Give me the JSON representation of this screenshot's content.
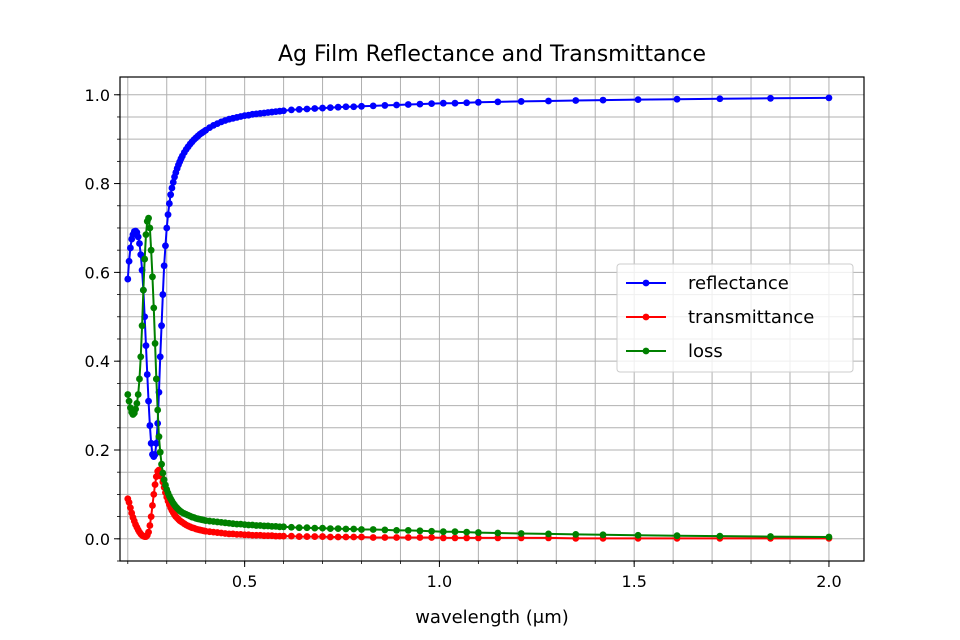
{
  "chart_data": {
    "type": "line",
    "title": "Ag Film Reflectance and Transmittance",
    "xlabel": "wavelength (μm)",
    "ylabel": "",
    "xlim": [
      0.18,
      2.09
    ],
    "ylim": [
      -0.05,
      1.04
    ],
    "xticks": [
      0.5,
      1.0,
      1.5,
      2.0
    ],
    "xtick_labels": [
      "0.5",
      "1.0",
      "1.5",
      "2.0"
    ],
    "yticks": [
      0.0,
      0.2,
      0.4,
      0.6,
      0.8,
      1.0
    ],
    "ytick_labels": [
      "0.0",
      "0.2",
      "0.4",
      "0.6",
      "0.8",
      "1.0"
    ],
    "grid": true,
    "minor_grid": true,
    "legend_position": "center-right",
    "series": [
      {
        "name": "reflectance",
        "color": "#0000ff",
        "x": [
          0.2,
          0.2033,
          0.2067,
          0.21,
          0.2133,
          0.2167,
          0.22,
          0.2233,
          0.2267,
          0.23,
          0.2333,
          0.2367,
          0.24,
          0.2433,
          0.2467,
          0.25,
          0.2533,
          0.2567,
          0.26,
          0.2633,
          0.2667,
          0.27,
          0.2733,
          0.2767,
          0.28,
          0.2833,
          0.2867,
          0.29,
          0.2933,
          0.2967,
          0.3,
          0.3033,
          0.3067,
          0.31,
          0.3133,
          0.3167,
          0.32,
          0.3233,
          0.3267,
          0.33,
          0.3333,
          0.3367,
          0.34,
          0.345,
          0.35,
          0.355,
          0.36,
          0.365,
          0.37,
          0.375,
          0.38,
          0.385,
          0.39,
          0.395,
          0.4,
          0.41,
          0.42,
          0.43,
          0.44,
          0.45,
          0.46,
          0.47,
          0.48,
          0.49,
          0.5,
          0.51,
          0.52,
          0.53,
          0.54,
          0.55,
          0.56,
          0.57,
          0.58,
          0.59,
          0.6,
          0.62,
          0.64,
          0.66,
          0.68,
          0.7,
          0.72,
          0.74,
          0.76,
          0.78,
          0.8,
          0.83,
          0.86,
          0.89,
          0.92,
          0.95,
          0.98,
          1.01,
          1.04,
          1.07,
          1.1,
          1.15,
          1.21,
          1.28,
          1.35,
          1.42,
          1.51,
          1.61,
          1.72,
          1.85,
          2.0
        ],
        "y": [
          0.585,
          0.625,
          0.655,
          0.675,
          0.685,
          0.692,
          0.693,
          0.69,
          0.68,
          0.665,
          0.64,
          0.605,
          0.56,
          0.5,
          0.435,
          0.37,
          0.31,
          0.255,
          0.215,
          0.19,
          0.185,
          0.19,
          0.215,
          0.26,
          0.33,
          0.41,
          0.48,
          0.55,
          0.615,
          0.66,
          0.7,
          0.73,
          0.755,
          0.775,
          0.79,
          0.803,
          0.815,
          0.825,
          0.834,
          0.842,
          0.849,
          0.856,
          0.862,
          0.87,
          0.877,
          0.883,
          0.889,
          0.894,
          0.899,
          0.903,
          0.907,
          0.911,
          0.914,
          0.917,
          0.92,
          0.926,
          0.931,
          0.935,
          0.939,
          0.942,
          0.945,
          0.947,
          0.949,
          0.951,
          0.953,
          0.954,
          0.956,
          0.957,
          0.958,
          0.959,
          0.96,
          0.961,
          0.962,
          0.963,
          0.964,
          0.966,
          0.967,
          0.968,
          0.969,
          0.97,
          0.971,
          0.972,
          0.973,
          0.973,
          0.974,
          0.975,
          0.976,
          0.977,
          0.978,
          0.979,
          0.98,
          0.981,
          0.981,
          0.982,
          0.983,
          0.984,
          0.985,
          0.986,
          0.987,
          0.988,
          0.989,
          0.99,
          0.991,
          0.992,
          0.993
        ]
      },
      {
        "name": "transmittance",
        "color": "#ff0000",
        "x": [
          0.2,
          0.2033,
          0.2067,
          0.21,
          0.2133,
          0.2167,
          0.22,
          0.2233,
          0.2267,
          0.23,
          0.2333,
          0.2367,
          0.24,
          0.2433,
          0.2467,
          0.25,
          0.2533,
          0.2567,
          0.26,
          0.2633,
          0.2667,
          0.27,
          0.2733,
          0.2767,
          0.28,
          0.2833,
          0.2867,
          0.29,
          0.2933,
          0.2967,
          0.3,
          0.3033,
          0.3067,
          0.31,
          0.3133,
          0.3167,
          0.32,
          0.3233,
          0.3267,
          0.33,
          0.3333,
          0.3367,
          0.34,
          0.345,
          0.35,
          0.355,
          0.36,
          0.365,
          0.37,
          0.375,
          0.38,
          0.385,
          0.39,
          0.395,
          0.4,
          0.41,
          0.42,
          0.43,
          0.44,
          0.45,
          0.46,
          0.47,
          0.48,
          0.49,
          0.5,
          0.51,
          0.52,
          0.53,
          0.54,
          0.55,
          0.56,
          0.57,
          0.58,
          0.59,
          0.6,
          0.62,
          0.64,
          0.66,
          0.68,
          0.7,
          0.72,
          0.74,
          0.76,
          0.78,
          0.8,
          0.83,
          0.86,
          0.89,
          0.92,
          0.95,
          0.98,
          1.01,
          1.04,
          1.07,
          1.1,
          1.15,
          1.21,
          1.28,
          1.35,
          1.42,
          1.51,
          1.61,
          1.72,
          1.85,
          2.0
        ],
        "y": [
          0.09,
          0.082,
          0.07,
          0.058,
          0.048,
          0.04,
          0.032,
          0.026,
          0.02,
          0.015,
          0.011,
          0.008,
          0.006,
          0.005,
          0.005,
          0.008,
          0.015,
          0.03,
          0.05,
          0.075,
          0.1,
          0.122,
          0.14,
          0.152,
          0.155,
          0.15,
          0.14,
          0.128,
          0.116,
          0.104,
          0.094,
          0.085,
          0.077,
          0.07,
          0.064,
          0.059,
          0.054,
          0.05,
          0.047,
          0.044,
          0.041,
          0.039,
          0.037,
          0.034,
          0.031,
          0.029,
          0.027,
          0.025,
          0.024,
          0.022,
          0.021,
          0.02,
          0.019,
          0.018,
          0.017,
          0.016,
          0.015,
          0.014,
          0.013,
          0.012,
          0.011,
          0.011,
          0.01,
          0.01,
          0.009,
          0.009,
          0.008,
          0.008,
          0.008,
          0.007,
          0.007,
          0.007,
          0.006,
          0.006,
          0.006,
          0.006,
          0.005,
          0.005,
          0.005,
          0.005,
          0.004,
          0.004,
          0.004,
          0.004,
          0.004,
          0.003,
          0.003,
          0.003,
          0.003,
          0.003,
          0.003,
          0.002,
          0.002,
          0.002,
          0.002,
          0.002,
          0.002,
          0.002,
          0.001,
          0.001,
          0.001,
          0.001,
          0.001,
          0.001,
          0.001
        ]
      },
      {
        "name": "loss",
        "color": "#008000",
        "x": [
          0.2,
          0.2033,
          0.2067,
          0.21,
          0.2133,
          0.2167,
          0.22,
          0.2233,
          0.2267,
          0.23,
          0.2333,
          0.2367,
          0.24,
          0.2433,
          0.2467,
          0.25,
          0.2533,
          0.2567,
          0.26,
          0.2633,
          0.2667,
          0.27,
          0.2733,
          0.2767,
          0.28,
          0.2833,
          0.2867,
          0.29,
          0.2933,
          0.2967,
          0.3,
          0.3033,
          0.3067,
          0.31,
          0.3133,
          0.3167,
          0.32,
          0.3233,
          0.3267,
          0.33,
          0.3333,
          0.3367,
          0.34,
          0.345,
          0.35,
          0.355,
          0.36,
          0.365,
          0.37,
          0.375,
          0.38,
          0.385,
          0.39,
          0.395,
          0.4,
          0.41,
          0.42,
          0.43,
          0.44,
          0.45,
          0.46,
          0.47,
          0.48,
          0.49,
          0.5,
          0.51,
          0.52,
          0.53,
          0.54,
          0.55,
          0.56,
          0.57,
          0.58,
          0.59,
          0.6,
          0.62,
          0.64,
          0.66,
          0.68,
          0.7,
          0.72,
          0.74,
          0.76,
          0.78,
          0.8,
          0.83,
          0.86,
          0.89,
          0.92,
          0.95,
          0.98,
          1.01,
          1.04,
          1.07,
          1.1,
          1.15,
          1.21,
          1.28,
          1.35,
          1.42,
          1.51,
          1.61,
          1.72,
          1.85,
          2.0
        ],
        "y": [
          0.325,
          0.31,
          0.295,
          0.285,
          0.28,
          0.283,
          0.292,
          0.305,
          0.325,
          0.36,
          0.41,
          0.48,
          0.56,
          0.63,
          0.685,
          0.715,
          0.722,
          0.7,
          0.65,
          0.59,
          0.52,
          0.44,
          0.36,
          0.29,
          0.23,
          0.195,
          0.168,
          0.148,
          0.133,
          0.121,
          0.111,
          0.103,
          0.096,
          0.09,
          0.085,
          0.08,
          0.076,
          0.072,
          0.069,
          0.066,
          0.063,
          0.061,
          0.059,
          0.057,
          0.055,
          0.053,
          0.051,
          0.049,
          0.048,
          0.046,
          0.045,
          0.044,
          0.043,
          0.042,
          0.041,
          0.04,
          0.039,
          0.038,
          0.037,
          0.036,
          0.035,
          0.034,
          0.033,
          0.033,
          0.032,
          0.031,
          0.031,
          0.03,
          0.03,
          0.029,
          0.029,
          0.028,
          0.028,
          0.027,
          0.027,
          0.026,
          0.025,
          0.025,
          0.024,
          0.024,
          0.023,
          0.023,
          0.022,
          0.022,
          0.021,
          0.021,
          0.02,
          0.019,
          0.019,
          0.018,
          0.017,
          0.016,
          0.016,
          0.015,
          0.014,
          0.013,
          0.012,
          0.011,
          0.01,
          0.009,
          0.008,
          0.007,
          0.006,
          0.005,
          0.004
        ]
      }
    ]
  }
}
